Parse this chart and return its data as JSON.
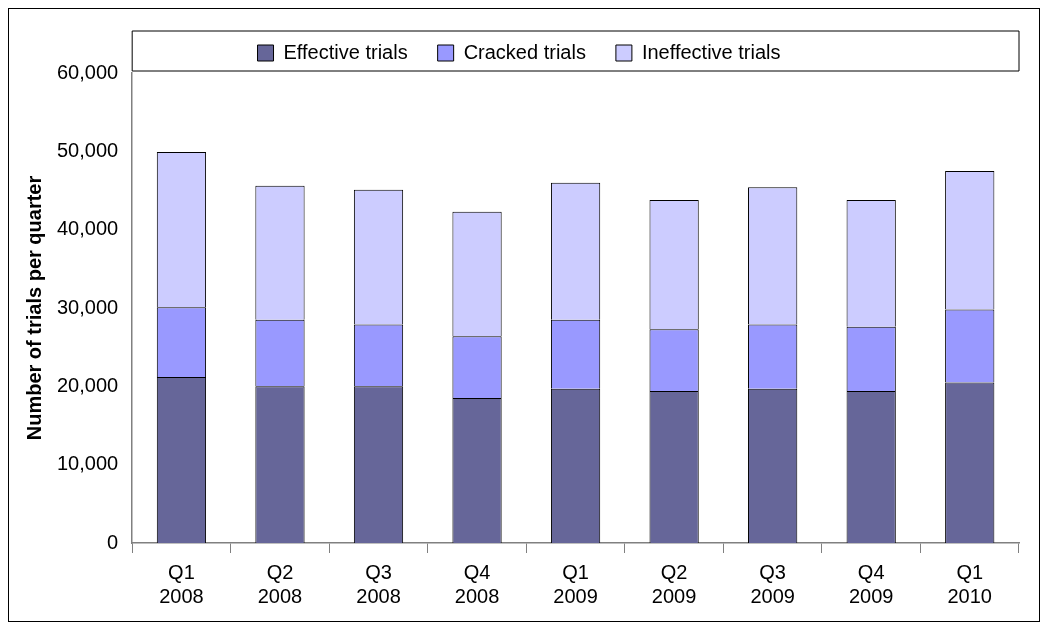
{
  "chart_data": {
    "type": "bar",
    "stacked": true,
    "ylabel": "Number of trials per quarter",
    "categories": [
      "Q1\n2008",
      "Q2\n2008",
      "Q3\n2008",
      "Q4\n2008",
      "Q1\n2009",
      "Q2\n2009",
      "Q3\n2009",
      "Q4\n2009",
      "Q1\n2010"
    ],
    "series": [
      {
        "name": "Effective trials",
        "color": "#666699",
        "values": [
          21200,
          20000,
          20000,
          18500,
          19700,
          19400,
          19700,
          19400,
          20500
        ]
      },
      {
        "name": "Cracked trials",
        "color": "#9999ff",
        "values": [
          8900,
          8500,
          7900,
          7900,
          8800,
          7900,
          8200,
          8200,
          9300
        ]
      },
      {
        "name": "Ineffective trials",
        "color": "#ccccff",
        "values": [
          19800,
          17100,
          17200,
          15900,
          17500,
          16500,
          17500,
          16200,
          17700
        ]
      }
    ],
    "ylim": [
      0,
      60000
    ],
    "yticks": [
      0,
      {
        "value": 10000,
        "label": "10,000"
      },
      {
        "value": 20000,
        "label": "20,000"
      },
      {
        "value": 30000,
        "label": "30,000"
      },
      {
        "value": 40000,
        "label": "40,000"
      },
      {
        "value": 50000,
        "label": "50,000"
      },
      {
        "value": 60000,
        "label": "60,000"
      }
    ],
    "grid": false,
    "legend": "top"
  }
}
